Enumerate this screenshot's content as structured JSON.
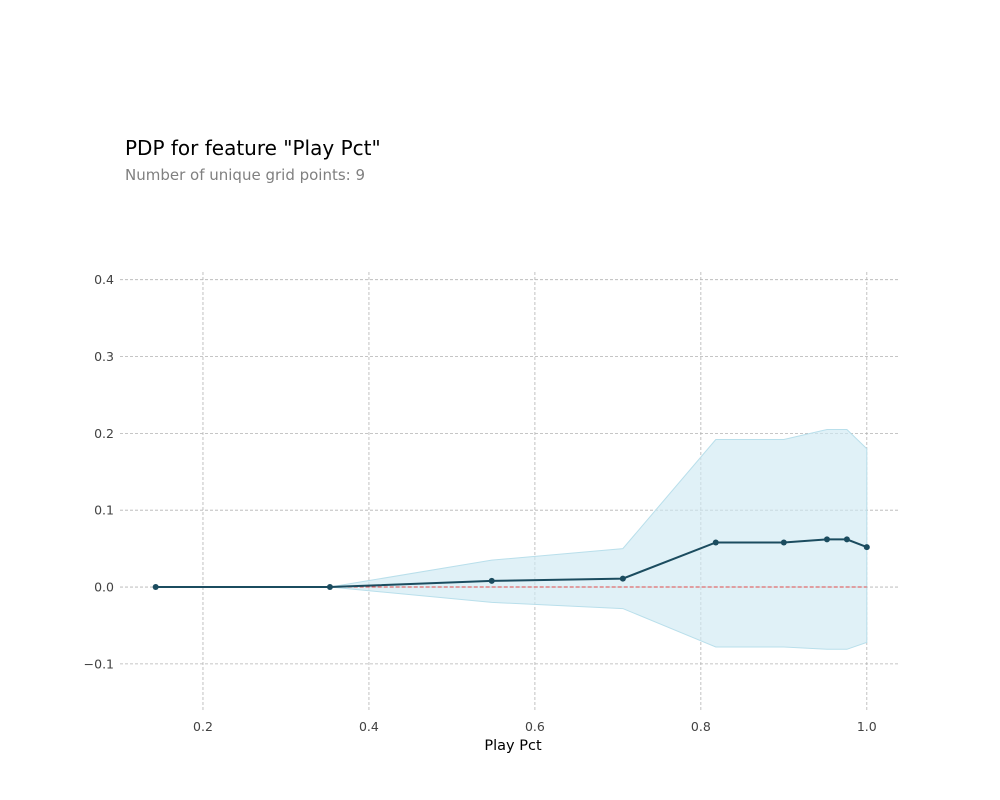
{
  "chart_data": {
    "type": "line",
    "title": "PDP for feature \"Play Pct\"",
    "subtitle": "Number of unique grid points: 9",
    "xlabel": "Play Pct",
    "ylabel": "",
    "xlim": [
      0.1,
      1.04
    ],
    "ylim": [
      -0.16,
      0.41
    ],
    "xticks": [
      0.2,
      0.4,
      0.6,
      0.8,
      1.0
    ],
    "xtick_labels": [
      "0.2",
      "0.4",
      "0.6",
      "0.8",
      "1.0"
    ],
    "yticks": [
      -0.1,
      0.0,
      0.1,
      0.2,
      0.3,
      0.4
    ],
    "ytick_labels": [
      "−0.1",
      "0.0",
      "0.1",
      "0.2",
      "0.3",
      "0.4"
    ],
    "grid": true,
    "x": [
      0.143,
      0.353,
      0.548,
      0.706,
      0.818,
      0.9,
      0.952,
      0.976,
      1.0
    ],
    "series": [
      {
        "values": [
          0.0,
          0.0,
          0.008,
          0.011,
          0.058,
          0.058,
          0.062,
          0.062,
          0.052
        ],
        "upper": [
          0.0,
          0.0,
          0.035,
          0.05,
          0.192,
          0.192,
          0.205,
          0.205,
          0.18
        ],
        "lower": [
          0.0,
          0.0,
          -0.02,
          -0.028,
          -0.078,
          -0.078,
          -0.081,
          -0.081,
          -0.072
        ]
      }
    ],
    "reference_line": 0.0,
    "colors": {
      "line": "#1b4c5f",
      "band": "#cfe9f2",
      "reference": "#e04b4b",
      "grid": "#b3b3b3"
    }
  }
}
